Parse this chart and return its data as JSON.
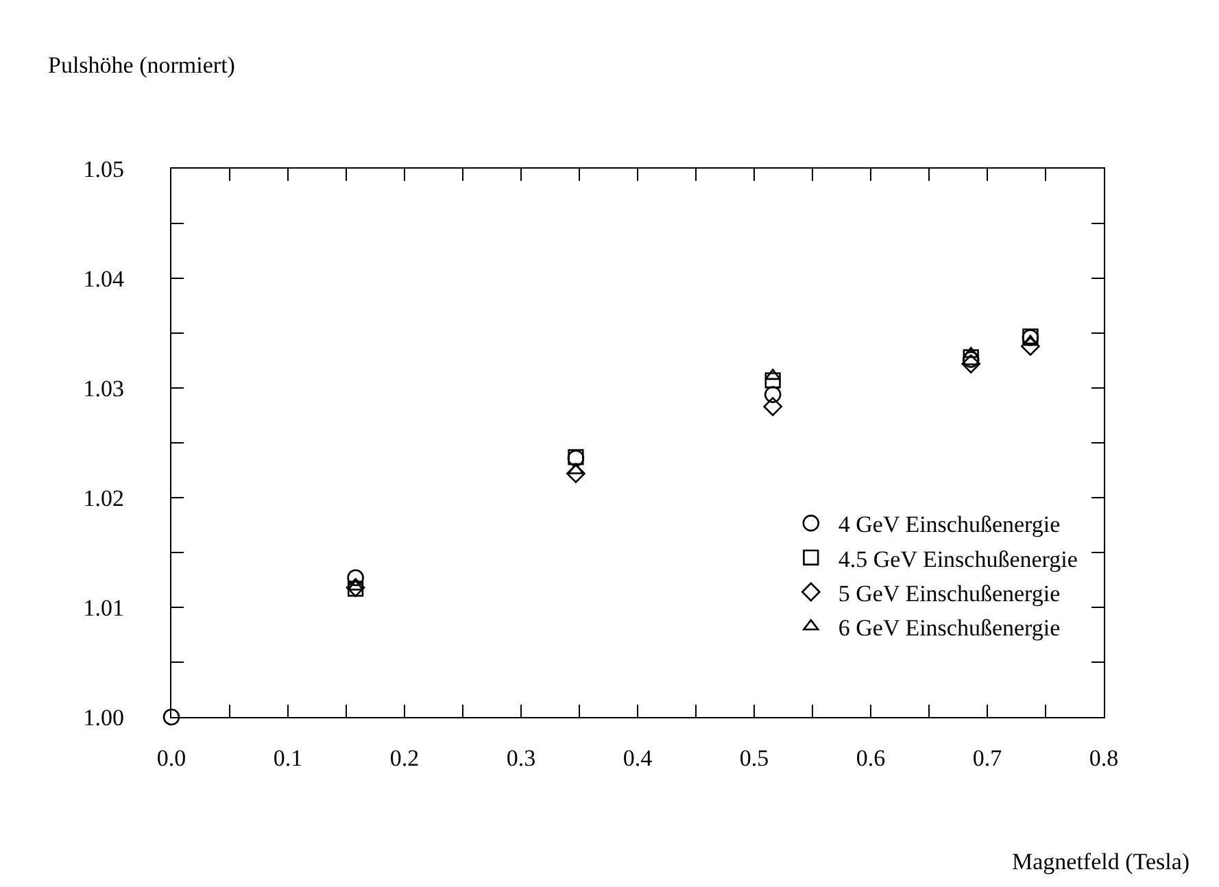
{
  "chart_data": {
    "type": "scatter",
    "xlabel": "Magnetfeld (Tesla)",
    "ylabel": "Pulshöhe (normiert)",
    "x": [
      0,
      0.158,
      0.347,
      0.516,
      0.686,
      0.737
    ],
    "series": [
      {
        "name": "4 GeV Einschußenergie",
        "color": "#000000",
        "marker": "circle",
        "values": [
          1.0,
          1.0127,
          1.0236,
          1.0294,
          1.0326,
          1.0346
        ]
      },
      {
        "name": "4.5 GeV Einschußenergie",
        "color": "#000000",
        "marker": "square",
        "values": [
          null,
          1.0117,
          1.0237,
          1.0307,
          1.0328,
          1.0347
        ]
      },
      {
        "name": "5 GeV Einschußenergie",
        "color": "#000000",
        "marker": "diamond",
        "values": [
          null,
          1.0118,
          1.0222,
          1.0283,
          1.0322,
          1.0338
        ]
      },
      {
        "name": "6 GeV Einschußenergie",
        "color": "#000000",
        "marker": "triangle",
        "values": [
          null,
          1.0119,
          1.0225,
          1.0311,
          1.0331,
          1.0342
        ]
      }
    ],
    "xlim": [
      0,
      0.8
    ],
    "xticks": [
      {
        "value": 0,
        "label": "0.0"
      },
      {
        "value": 0.05,
        "label": null
      },
      0.1,
      {
        "value": 0.15,
        "label": null
      },
      0.2,
      {
        "value": 0.25,
        "label": null
      },
      0.3,
      {
        "value": 0.35,
        "label": null
      },
      0.4,
      {
        "value": 0.45,
        "label": null
      },
      0.5,
      {
        "value": 0.55,
        "label": null
      },
      0.6,
      {
        "value": 0.65,
        "label": null
      },
      0.7,
      {
        "value": 0.75,
        "label": null
      },
      0.8
    ],
    "ylim": [
      1.0,
      1.05
    ],
    "yticks": [
      {
        "value": 1.0,
        "label": "1.00"
      },
      {
        "value": 1.005,
        "label": null
      },
      1.01,
      {
        "value": 1.015,
        "label": null
      },
      1.02,
      {
        "value": 1.025,
        "label": null
      },
      1.03,
      {
        "value": 1.035,
        "label": null
      },
      1.04,
      {
        "value": 1.045,
        "label": null
      },
      1.05
    ],
    "grid": false,
    "legend": "bottom right"
  }
}
